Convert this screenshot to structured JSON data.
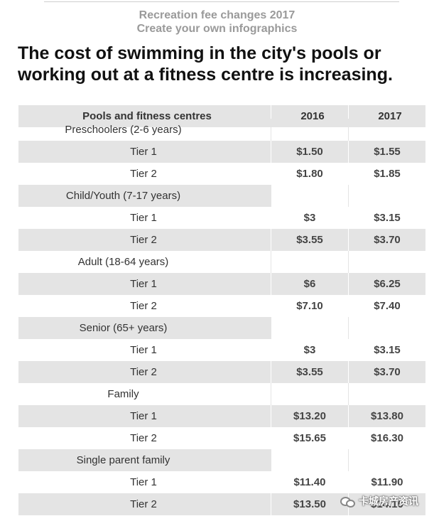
{
  "header": {
    "line1": "Recreation fee changes 2017",
    "line2": "Create your own infographics"
  },
  "title": "The cost of swimming in the city's pools or working out at a fitness centre is increasing.",
  "chart_data": {
    "type": "table",
    "columns": [
      "Pools and fitness centres",
      "2016",
      "2017"
    ],
    "groups": [
      {
        "name": "Preschoolers (2-6 years)",
        "rows": [
          {
            "label": "Tier 1",
            "y2016": "$1.50",
            "y2017": "$1.55"
          },
          {
            "label": "Tier 2",
            "y2016": "$1.80",
            "y2017": "$1.85"
          }
        ]
      },
      {
        "name": "Child/Youth (7-17 years)",
        "rows": [
          {
            "label": "Tier 1",
            "y2016": "$3",
            "y2017": "$3.15"
          },
          {
            "label": "Tier 2",
            "y2016": "$3.55",
            "y2017": "$3.70"
          }
        ]
      },
      {
        "name": "Adult (18-64 years)",
        "rows": [
          {
            "label": "Tier 1",
            "y2016": "$6",
            "y2017": "$6.25"
          },
          {
            "label": "Tier 2",
            "y2016": "$7.10",
            "y2017": "$7.40"
          }
        ]
      },
      {
        "name": "Senior (65+ years)",
        "rows": [
          {
            "label": "Tier 1",
            "y2016": "$3",
            "y2017": "$3.15"
          },
          {
            "label": "Tier 2",
            "y2016": "$3.55",
            "y2017": "$3.70"
          }
        ]
      },
      {
        "name": "Family",
        "rows": [
          {
            "label": "Tier 1",
            "y2016": "$13.20",
            "y2017": "$13.80"
          },
          {
            "label": "Tier 2",
            "y2016": "$15.65",
            "y2017": "$16.30"
          }
        ]
      },
      {
        "name": "Single parent family",
        "rows": [
          {
            "label": "Tier 1",
            "y2016": "$11.40",
            "y2017": "$11.90"
          },
          {
            "label": "Tier 2",
            "y2016": "$13.50",
            "y2017": "$14.10"
          }
        ]
      }
    ]
  },
  "watermark": {
    "text": "卡城房产资讯",
    "icon": "wechat-icon"
  }
}
